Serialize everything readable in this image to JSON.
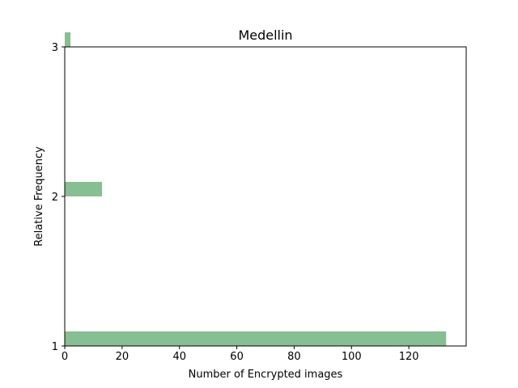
{
  "chart_data": {
    "type": "bar",
    "orientation": "horizontal",
    "title": "Medellin",
    "xlabel": "Number of Encrypted images",
    "ylabel": "Relative Frequency",
    "xlim": [
      0,
      140
    ],
    "ylim": [
      1,
      3
    ],
    "xticks": [
      0,
      20,
      40,
      60,
      80,
      100,
      120
    ],
    "yticks": [
      1,
      2,
      3
    ],
    "ytick_labels": [
      "1",
      "2",
      "3"
    ],
    "bars": [
      {
        "y": 1,
        "value": 133
      },
      {
        "y": 2,
        "value": 13
      },
      {
        "y": 3,
        "value": 2
      }
    ],
    "bar_color": "#86bf91",
    "grid": false
  }
}
